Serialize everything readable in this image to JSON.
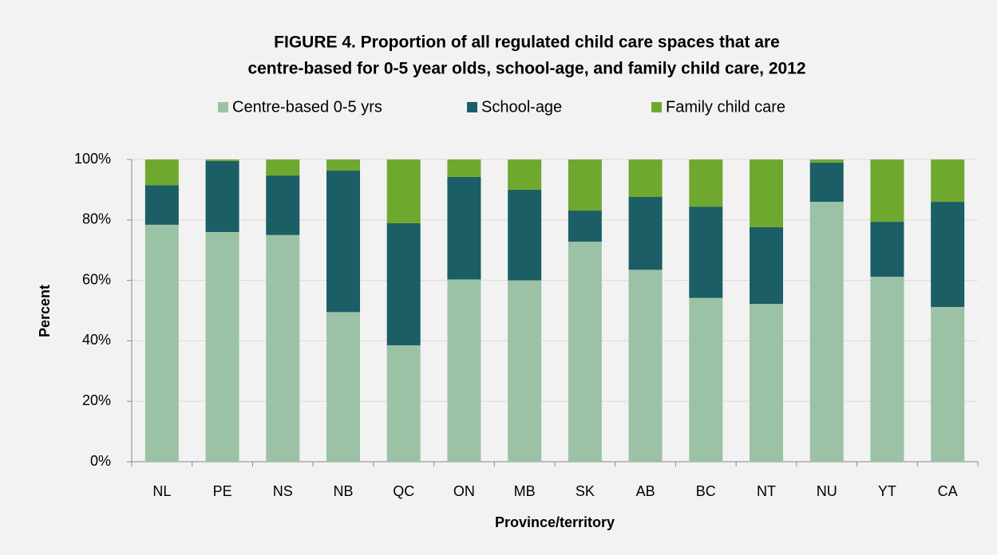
{
  "chart_data": {
    "type": "stacked_bar",
    "title": [
      "FIGURE 4. Proportion of all regulated child care spaces that are",
      "centre-based for 0-5 year olds, school-age,  and family child care, 2012"
    ],
    "xlabel": "Province/territory",
    "ylabel": "Percent",
    "categories": [
      "NL",
      "PE",
      "NS",
      "NB",
      "QC",
      "ON",
      "MB",
      "SK",
      "AB",
      "BC",
      "NT",
      "NU",
      "YT",
      "CA"
    ],
    "series": [
      {
        "name": "Centre-based 0-5 yrs",
        "color": "#9bc2a5",
        "values": [
          78.4,
          76,
          75,
          49.5,
          38.5,
          60.3,
          60,
          72.8,
          63.5,
          54.2,
          52.2,
          86,
          61.2,
          51.2
        ]
      },
      {
        "name": "School-age",
        "color": "#1b5e66",
        "values": [
          13.1,
          23.5,
          19.7,
          46.8,
          40.4,
          33.9,
          30,
          10.3,
          24.1,
          30.2,
          25.4,
          13,
          18.2,
          34.8
        ]
      },
      {
        "name": "Family child care",
        "color": "#6fa82f",
        "values": [
          8.5,
          0.5,
          5.3,
          3.7,
          21.1,
          5.8,
          10,
          16.9,
          12.4,
          15.6,
          22.4,
          1,
          20.6,
          14
        ]
      }
    ],
    "ylim": [
      0,
      100
    ],
    "yticks": [
      {
        "value": 0,
        "label": "0%"
      },
      {
        "value": 20,
        "label": "20%"
      },
      {
        "value": 40,
        "label": "40%"
      },
      {
        "value": 60,
        "label": "60%"
      },
      {
        "value": 80,
        "label": "80%"
      },
      {
        "value": 100,
        "label": "100%"
      }
    ],
    "grid": true
  }
}
